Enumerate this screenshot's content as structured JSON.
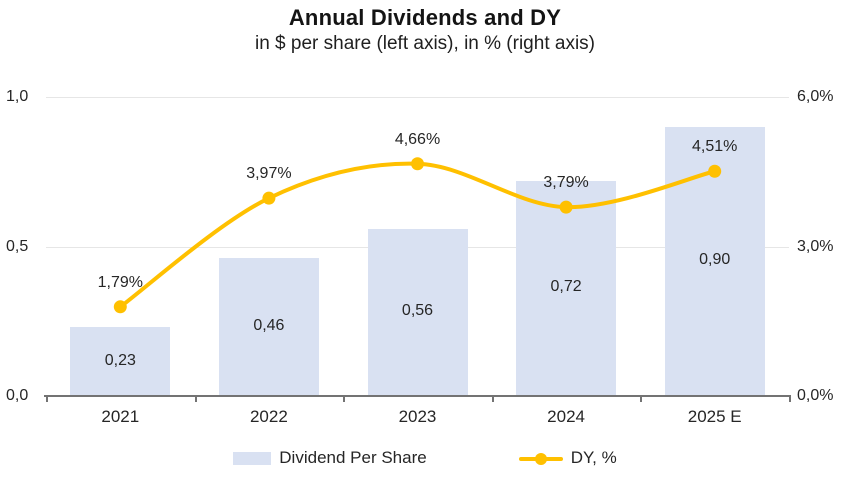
{
  "chart_data": {
    "type": "bar",
    "combo": "bar+line",
    "title": "Annual Dividends and DY",
    "subtitle": "in $ per share (left axis), in % (right axis)",
    "categories": [
      "2021",
      "2022",
      "2023",
      "2024",
      "2025 E"
    ],
    "series": [
      {
        "name": "Dividend Per Share",
        "type": "bar",
        "axis": "left",
        "values": [
          0.23,
          0.46,
          0.56,
          0.72,
          0.9
        ],
        "labels": [
          "0,23",
          "0,46",
          "0,56",
          "0,72",
          "0,90"
        ],
        "color": "#d9e1f2"
      },
      {
        "name": "DY, %",
        "type": "line",
        "axis": "right",
        "values": [
          1.79,
          3.97,
          4.66,
          3.79,
          4.51
        ],
        "labels": [
          "1,79%",
          "3,97%",
          "4,66%",
          "3,79%",
          "4,51%"
        ],
        "color": "#ffc000"
      }
    ],
    "left_axis": {
      "min": 0,
      "max": 1.0,
      "ticks": [
        {
          "value": 0.0,
          "label": "0,0"
        },
        {
          "value": 0.5,
          "label": "0,5"
        },
        {
          "value": 1.0,
          "label": "1,0"
        }
      ]
    },
    "right_axis": {
      "min": 0,
      "max": 6.0,
      "ticks": [
        {
          "value": 0.0,
          "label": "0,0%"
        },
        {
          "value": 3.0,
          "label": "3,0%"
        },
        {
          "value": 6.0,
          "label": "6,0%"
        }
      ]
    },
    "grid": true,
    "legend_position": "bottom"
  },
  "colors": {
    "bar_fill": "#d9e1f2",
    "line": "#ffc000",
    "gridline": "#e6e6e6",
    "axis_line": "#737373",
    "text": "#262626"
  }
}
